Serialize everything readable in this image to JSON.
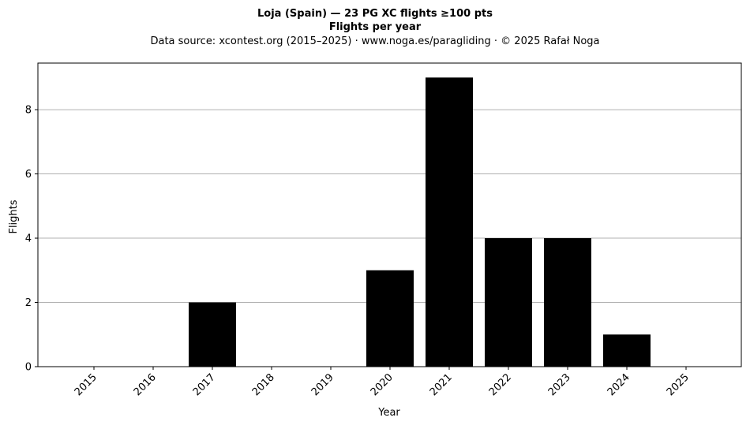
{
  "chart_data": {
    "type": "bar",
    "title": "Loja (Spain)  —  23 PG XC flights ≥100 pts",
    "title2": "Flights per year",
    "subtitle": "Data source: xcontest.org (2015–2025)  ·  www.noga.es/paragliding  ·  © 2025 Rafał Noga",
    "xlabel": "Year",
    "ylabel": "Flights",
    "categories": [
      "2015",
      "2016",
      "2017",
      "2018",
      "2019",
      "2020",
      "2021",
      "2022",
      "2023",
      "2024",
      "2025"
    ],
    "values": [
      0,
      0,
      2,
      0,
      0,
      3,
      9,
      4,
      4,
      1,
      0
    ],
    "ylim": [
      0,
      9.45
    ],
    "yticks": [
      0,
      2,
      4,
      6,
      8
    ],
    "grid": "horizontal",
    "bar_color": "#000000",
    "grid_color": "#b0b0b0"
  }
}
